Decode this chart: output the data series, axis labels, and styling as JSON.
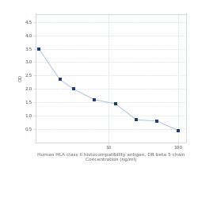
{
  "x": [
    1.0,
    2.0,
    3.125,
    6.25,
    12.5,
    25,
    50,
    100
  ],
  "y": [
    3.5,
    2.35,
    2.0,
    1.6,
    1.45,
    0.85,
    0.8,
    0.45
  ],
  "line_color": "#a8c4dc",
  "marker_color": "#1f3d7a",
  "marker_style": "s",
  "marker_size": 3.0,
  "xlabel_line1": "Human HLA class II histocompatibility antigen, DR beta 5 chain",
  "xlabel_line2": "Concentration (ng/ml)",
  "ylabel": "OD",
  "xlim_log": [
    0.9,
    130
  ],
  "ylim": [
    0.0,
    4.8
  ],
  "yticks": [
    0.5,
    1.0,
    1.5,
    2.0,
    2.5,
    3.0,
    3.5,
    4.0,
    4.5
  ],
  "xtick_vals": [
    10,
    100
  ],
  "xtick_labels": [
    "10",
    "100"
  ],
  "grid_color": "#c8d8e8",
  "bg_color": "#ffffff",
  "label_fontsize": 4.2,
  "tick_fontsize": 4.2,
  "linewidth": 0.7,
  "spine_color": "#c0ccd8"
}
